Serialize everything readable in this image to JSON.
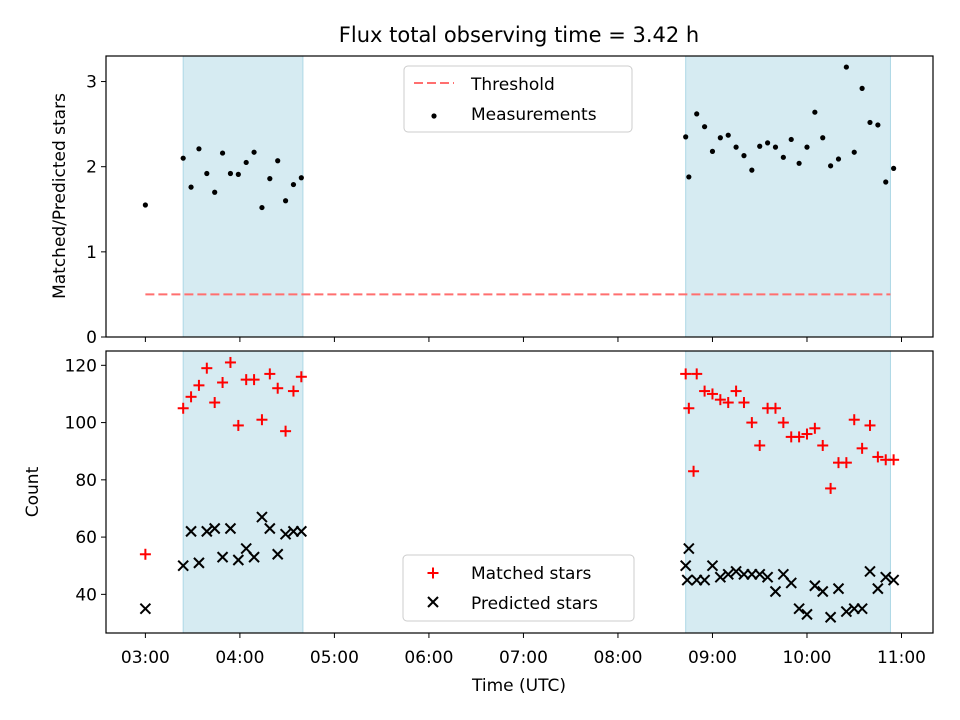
{
  "figure": {
    "title": "Flux total observing time = 3.42 h"
  },
  "chart_data": [
    {
      "type": "scatter",
      "panel": "top",
      "ylabel": "Matched/Predicted stars",
      "ylim": [
        0,
        3.3
      ],
      "yticks": [
        0,
        1,
        2,
        3
      ],
      "xlim": [
        "02:35",
        "11:20"
      ],
      "shaded_intervals": [
        [
          "03:24",
          "04:40"
        ],
        [
          "08:43",
          "10:53"
        ]
      ],
      "shade_color": "#add8e6",
      "legend_position": "upper center",
      "series": [
        {
          "name": "Threshold",
          "kind": "dashed-line",
          "color": "#ff6f6f",
          "x": [
            "03:00",
            "10:53"
          ],
          "y": [
            0.5,
            0.5
          ]
        },
        {
          "name": "Measurements",
          "kind": "dot",
          "color": "#000000",
          "x": [
            "03:00",
            "03:24",
            "03:29",
            "03:34",
            "03:39",
            "03:44",
            "03:49",
            "03:54",
            "03:59",
            "04:04",
            "04:09",
            "04:14",
            "04:19",
            "04:24",
            "04:29",
            "04:34",
            "04:39",
            "08:43",
            "08:45",
            "08:50",
            "08:55",
            "09:00",
            "09:05",
            "09:10",
            "09:15",
            "09:20",
            "09:25",
            "09:30",
            "09:35",
            "09:40",
            "09:45",
            "09:50",
            "09:55",
            "10:00",
            "10:05",
            "10:10",
            "10:15",
            "10:20",
            "10:25",
            "10:30",
            "10:35",
            "10:40",
            "10:45",
            "10:50",
            "10:55"
          ],
          "y": [
            1.55,
            2.1,
            1.76,
            2.21,
            1.92,
            1.7,
            2.16,
            1.92,
            1.91,
            2.05,
            2.17,
            1.52,
            1.86,
            2.07,
            1.6,
            1.79,
            1.87,
            2.35,
            1.88,
            2.62,
            2.47,
            2.18,
            2.34,
            2.37,
            2.23,
            2.13,
            1.96,
            2.24,
            2.28,
            2.23,
            2.11,
            2.32,
            2.04,
            2.23,
            2.64,
            2.34,
            2.01,
            2.09,
            3.17,
            2.17,
            2.92,
            2.52,
            2.49,
            1.82,
            1.98
          ]
        }
      ]
    },
    {
      "type": "scatter",
      "panel": "bottom",
      "xlabel": "Time (UTC)",
      "ylabel": "Count",
      "ylim": [
        26.5,
        125
      ],
      "yticks": [
        40,
        60,
        80,
        100,
        120
      ],
      "xlim": [
        "02:35",
        "11:20"
      ],
      "xticks": [
        "03:00",
        "04:00",
        "05:00",
        "06:00",
        "07:00",
        "08:00",
        "09:00",
        "10:00",
        "11:00"
      ],
      "shaded_intervals": [
        [
          "03:24",
          "04:40"
        ],
        [
          "08:43",
          "10:53"
        ]
      ],
      "shade_color": "#add8e6",
      "legend_position": "lower center",
      "series": [
        {
          "name": "Matched stars",
          "kind": "plus",
          "color": "#ff0000",
          "x": [
            "03:00",
            "03:24",
            "03:29",
            "03:34",
            "03:39",
            "03:44",
            "03:49",
            "03:54",
            "03:59",
            "04:04",
            "04:09",
            "04:14",
            "04:19",
            "04:24",
            "04:29",
            "04:34",
            "04:39",
            "08:43",
            "08:45",
            "08:50",
            "08:55",
            "09:00",
            "09:05",
            "09:10",
            "09:15",
            "09:20",
            "09:25",
            "09:30",
            "09:35",
            "09:40",
            "09:45",
            "09:50",
            "09:55",
            "10:00",
            "10:05",
            "10:10",
            "10:15",
            "10:20",
            "10:25",
            "10:30",
            "10:35",
            "10:40",
            "10:45",
            "10:50",
            "10:55",
            "08:48"
          ],
          "y": [
            54,
            105,
            109,
            113,
            119,
            107,
            114,
            121,
            99,
            115,
            115,
            101,
            117,
            112,
            97,
            111,
            116,
            117,
            105,
            117,
            111,
            110,
            108,
            107,
            111,
            107,
            100,
            92,
            105,
            105,
            100,
            95,
            95,
            96,
            98,
            92,
            77,
            86,
            86,
            101,
            91,
            99,
            88,
            87,
            87,
            83
          ]
        },
        {
          "name": "Predicted stars",
          "kind": "cross",
          "color": "#000000",
          "x": [
            "03:00",
            "03:24",
            "03:29",
            "03:34",
            "03:39",
            "03:44",
            "03:49",
            "03:54",
            "03:59",
            "04:04",
            "04:09",
            "04:14",
            "04:19",
            "04:24",
            "04:29",
            "04:34",
            "04:39",
            "08:43",
            "08:45",
            "08:50",
            "08:55",
            "09:00",
            "09:05",
            "09:10",
            "09:15",
            "09:20",
            "09:25",
            "09:30",
            "09:35",
            "09:40",
            "09:45",
            "09:50",
            "09:55",
            "10:00",
            "10:05",
            "10:10",
            "10:15",
            "10:20",
            "10:25",
            "10:30",
            "10:35",
            "10:40",
            "10:45",
            "10:50",
            "10:55",
            "08:44"
          ],
          "y": [
            35,
            50,
            62,
            51,
            62,
            63,
            53,
            63,
            52,
            56,
            53,
            67,
            63,
            54,
            61,
            62,
            62,
            50,
            56,
            45,
            45,
            50,
            46,
            47,
            48,
            47,
            47,
            47,
            46,
            41,
            47,
            44,
            35,
            33,
            43,
            41,
            32,
            42,
            34,
            35,
            35,
            48,
            42,
            46,
            45,
            45
          ]
        }
      ]
    }
  ]
}
